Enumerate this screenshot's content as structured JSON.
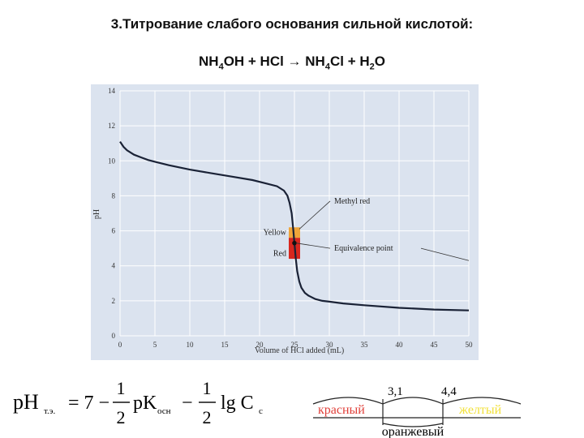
{
  "slide": {
    "title": "3.Титрование слабого основания сильной кислотой:",
    "equation": {
      "lhs1_pre": "NH",
      "lhs1_sub": "4",
      "lhs1_post": "OH + HCl → NH",
      "rhs1_sub": "4",
      "rhs1_post": "Cl + H",
      "rhs2_sub": "2",
      "rhs2_post": "O"
    }
  },
  "chart_data": {
    "type": "line",
    "title": "",
    "xlabel": "Volume of HCl added (mL)",
    "ylabel": "pH",
    "xlim": [
      0,
      50
    ],
    "ylim": [
      0,
      14
    ],
    "xticks": [
      0,
      5,
      10,
      15,
      20,
      25,
      30,
      35,
      40,
      45,
      50
    ],
    "yticks": [
      0,
      2,
      4,
      6,
      8,
      10,
      12,
      14
    ],
    "grid": true,
    "background": "#dbe3ef",
    "line_color": "#1a2236",
    "series": [
      {
        "name": "",
        "x": [
          0,
          0.5,
          1,
          2,
          3,
          4,
          5,
          7,
          10,
          13,
          16,
          19,
          21,
          22.5,
          23.5,
          24,
          24.3,
          24.6,
          24.8,
          25,
          25.2,
          25.4,
          25.7,
          26,
          26.5,
          27,
          28,
          29,
          30,
          32,
          35,
          40,
          45,
          50
        ],
        "y": [
          11.1,
          10.8,
          10.6,
          10.35,
          10.2,
          10.05,
          9.95,
          9.75,
          9.5,
          9.3,
          9.1,
          8.9,
          8.7,
          8.55,
          8.3,
          8.0,
          7.6,
          7.0,
          6.2,
          5.3,
          4.4,
          3.7,
          3.1,
          2.75,
          2.45,
          2.3,
          2.1,
          2.0,
          1.95,
          1.85,
          1.75,
          1.6,
          1.5,
          1.45
        ]
      }
    ],
    "indicator": {
      "name": "Methyl red",
      "x": 25,
      "yellow_range": [
        5.6,
        6.2
      ],
      "red_range": [
        4.4,
        5.6
      ],
      "yellow_color": "#f0a53a",
      "red_color": "#d8271e"
    },
    "equivalence_point": {
      "x": 25,
      "y": 5.3
    },
    "annotations": {
      "methyl_red": "Methyl red",
      "equivalence": "Equivalence point",
      "yellow": "Yellow",
      "red": "Red"
    }
  },
  "formula": {
    "lhs_main": "pH",
    "lhs_sub": "т.э.",
    "eq": "= 7 −",
    "frac1_num": "1",
    "frac1_den": "2",
    "pk": "pK",
    "pk_sub": "осн",
    "minus": "−",
    "frac2_num": "1",
    "frac2_den": "2",
    "lg": "lg C",
    "c_sub": "c"
  },
  "indicator_scale": {
    "value1": "3,1",
    "value2": "4,4",
    "left_label": "красный",
    "right_label": "желтый",
    "bottom_label": "оранжевый",
    "left_color": "#e0403a",
    "right_color": "#f2e13a",
    "line_color": "#222222"
  }
}
